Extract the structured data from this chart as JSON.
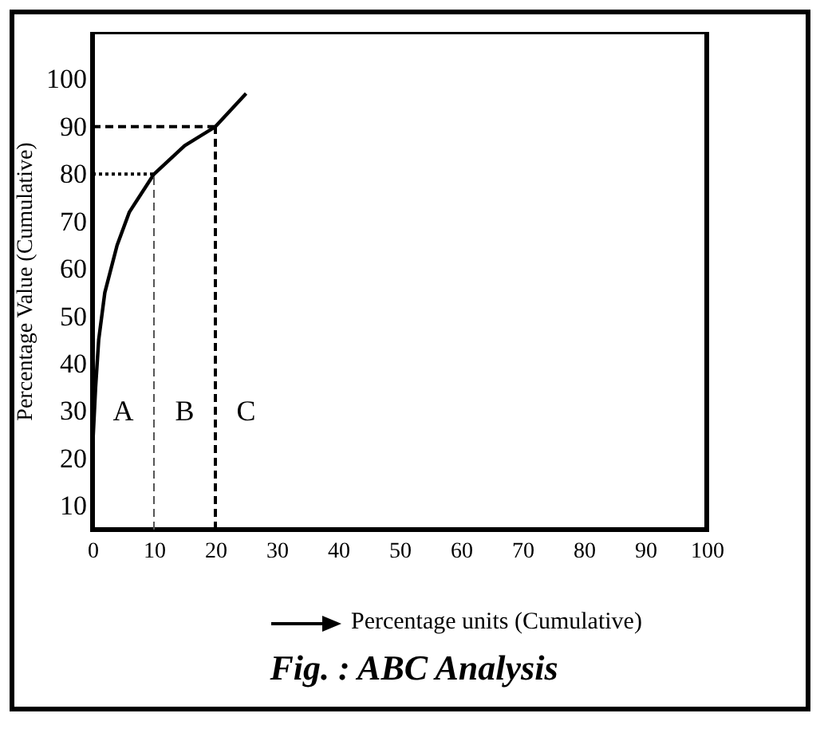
{
  "chart_data": {
    "type": "line",
    "title": "Fig. : ABC Analysis",
    "xlabel": "Percentage units (Cumulative)",
    "ylabel": "Percentage Value (Cumulative)",
    "x": [
      0,
      0.5,
      1,
      2,
      4,
      6,
      10,
      15,
      20,
      25
    ],
    "series": [
      {
        "color": "#000000",
        "values": [
          22,
          35,
          45,
          55,
          65,
          72,
          80,
          86,
          90,
          97
        ]
      }
    ],
    "xlim": [
      0,
      100
    ],
    "xticks": [
      0,
      10,
      20,
      30,
      40,
      50,
      60,
      70,
      80,
      90,
      100
    ],
    "ylim": [
      5,
      110
    ],
    "yticks": [
      10,
      20,
      30,
      40,
      50,
      60,
      70,
      80,
      90,
      100
    ],
    "ref_lines": [
      {
        "axis": "y",
        "value": 80,
        "line_style": "dotted",
        "color": "#000000"
      },
      {
        "axis": "y",
        "value": 90,
        "line_style": "dashed",
        "color": "#000000"
      },
      {
        "axis": "x",
        "value": 10,
        "line_style": "dashed",
        "color": "#555555"
      },
      {
        "axis": "x",
        "value": 20,
        "line_style": "dashed",
        "color": "#000000"
      }
    ],
    "annotations": [
      "A",
      "B",
      "C"
    ],
    "grid": false,
    "marker": "none",
    "line_style": "solid"
  }
}
